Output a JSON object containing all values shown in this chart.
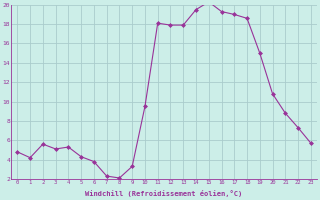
{
  "x": [
    0,
    1,
    2,
    3,
    4,
    5,
    6,
    7,
    8,
    9,
    10,
    11,
    12,
    13,
    14,
    15,
    16,
    17,
    18,
    19,
    20,
    21,
    22,
    23
  ],
  "y": [
    4.8,
    4.2,
    5.6,
    5.1,
    5.3,
    4.3,
    3.8,
    2.3,
    2.1,
    3.3,
    9.5,
    18.1,
    17.9,
    17.9,
    19.5,
    20.3,
    19.3,
    19.0,
    18.6,
    15.0,
    10.8,
    8.8,
    7.3,
    5.7
  ],
  "line_color": "#993399",
  "marker": "D",
  "marker_size": 2.0,
  "bg_color": "#cceee8",
  "grid_color": "#aacccc",
  "xlabel": "Windchill (Refroidissement éolien,°C)",
  "xlabel_color": "#993399",
  "tick_color": "#993399",
  "ylim": [
    2,
    20
  ],
  "xlim": [
    -0.5,
    23.5
  ],
  "yticks": [
    2,
    4,
    6,
    8,
    10,
    12,
    14,
    16,
    18,
    20
  ],
  "xticks": [
    0,
    1,
    2,
    3,
    4,
    5,
    6,
    7,
    8,
    9,
    10,
    11,
    12,
    13,
    14,
    15,
    16,
    17,
    18,
    19,
    20,
    21,
    22,
    23
  ]
}
